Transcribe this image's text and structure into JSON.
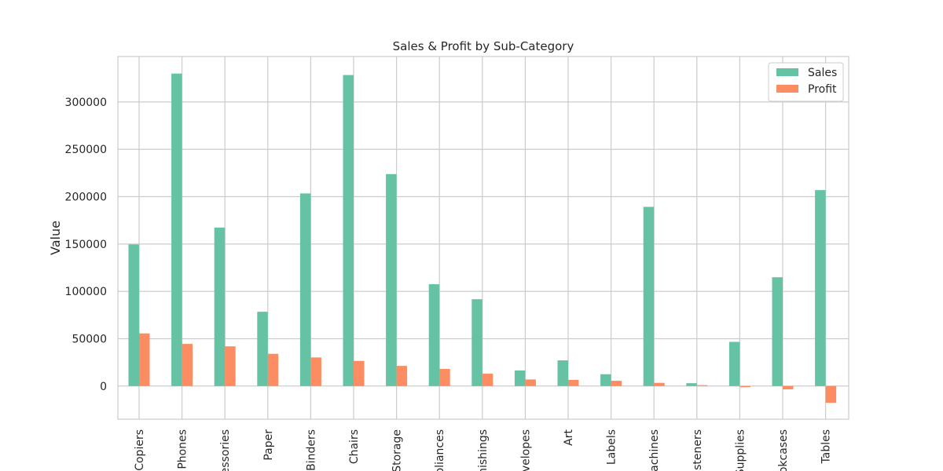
{
  "chart_data": {
    "type": "bar",
    "title": "Sales & Profit by Sub-Category",
    "xlabel": "",
    "ylabel": "Value",
    "categories": [
      "Copiers",
      "Phones",
      "Accessories",
      "Paper",
      "Binders",
      "Chairs",
      "Storage",
      "Appliances",
      "Furnishings",
      "Envelopes",
      "Art",
      "Labels",
      "Machines",
      "Fasteners",
      "Supplies",
      "Bookcases",
      "Tables"
    ],
    "series": [
      {
        "name": "Sales",
        "color": "#66c2a5",
        "values": [
          149528,
          330007,
          167380,
          78479,
          203413,
          328449,
          223844,
          107532,
          91705,
          16476,
          27119,
          12486,
          189239,
          3024,
          46674,
          114880,
          206966
        ]
      },
      {
        "name": "Profit",
        "color": "#fc8d62",
        "values": [
          55618,
          44516,
          41937,
          34054,
          30222,
          26590,
          21279,
          18138,
          13059,
          6964,
          6528,
          5546,
          3385,
          950,
          -1189,
          -3473,
          -17725
        ]
      }
    ],
    "ylim": [
      -35000,
      348000
    ],
    "yticks": [
      0,
      50000,
      100000,
      150000,
      200000,
      250000,
      300000
    ],
    "grid": true,
    "legend": "top-right"
  }
}
